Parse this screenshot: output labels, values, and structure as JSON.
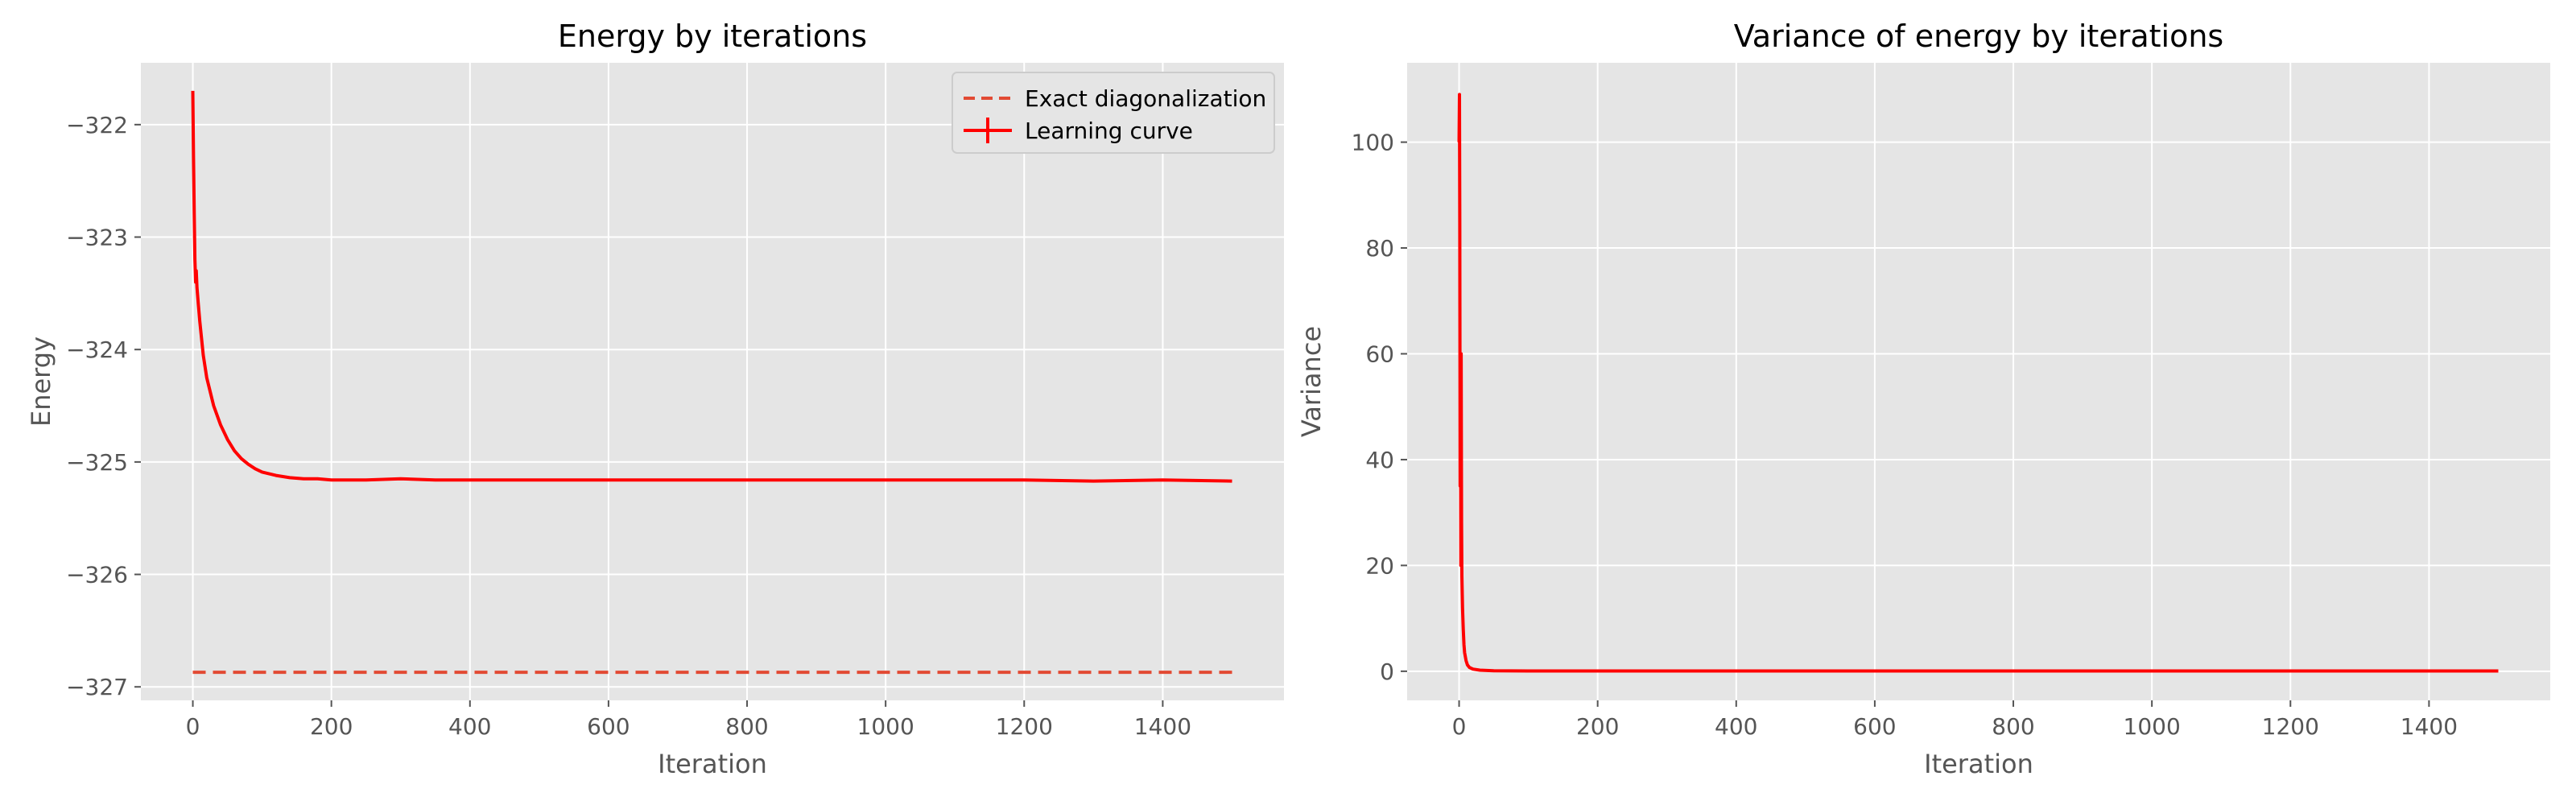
{
  "colors": {
    "figure_bg": "#ffffff",
    "axes_bg": "#e5e5e5",
    "grid": "#ffffff",
    "tick": "#555555",
    "exact_line": "#e24a33",
    "curve": "#ff0000",
    "legend_bg": "#e5e5e5",
    "legend_border": "#cccccc"
  },
  "chart_data": [
    {
      "type": "line",
      "title": "Energy by iterations",
      "xlabel": "Iteration",
      "ylabel": "Energy",
      "xlim": [
        -75,
        1575
      ],
      "ylim": [
        -327.12,
        -321.45
      ],
      "xticks": [
        0,
        200,
        400,
        600,
        800,
        1000,
        1200,
        1400
      ],
      "yticks": [
        -327,
        -326,
        -325,
        -324,
        -323,
        -322
      ],
      "grid": true,
      "legend_position": "top-right",
      "series": [
        {
          "name": "Exact diagonalization",
          "style": "dashed",
          "x": [
            0,
            1500
          ],
          "y": [
            -326.87,
            -326.87
          ]
        },
        {
          "name": "Learning curve",
          "style": "solid",
          "x": [
            0,
            1,
            2,
            3,
            4,
            5,
            6,
            8,
            10,
            15,
            20,
            30,
            40,
            50,
            60,
            70,
            80,
            90,
            100,
            120,
            140,
            160,
            180,
            200,
            250,
            300,
            350,
            400,
            500,
            600,
            700,
            800,
            900,
            1000,
            1100,
            1200,
            1300,
            1400,
            1500
          ],
          "y": [
            -321.7,
            -322.3,
            -322.8,
            -323.2,
            -323.4,
            -323.3,
            -323.45,
            -323.6,
            -323.75,
            -324.05,
            -324.25,
            -324.5,
            -324.67,
            -324.8,
            -324.9,
            -324.97,
            -325.02,
            -325.06,
            -325.09,
            -325.12,
            -325.14,
            -325.15,
            -325.15,
            -325.16,
            -325.16,
            -325.15,
            -325.16,
            -325.16,
            -325.16,
            -325.16,
            -325.16,
            -325.16,
            -325.16,
            -325.16,
            -325.16,
            -325.16,
            -325.17,
            -325.16,
            -325.17
          ]
        }
      ]
    },
    {
      "type": "line",
      "title": "Variance of energy by iterations",
      "xlabel": "Iteration",
      "ylabel": "Variance",
      "xlim": [
        -75,
        1575
      ],
      "ylim": [
        -5.5,
        115
      ],
      "xticks": [
        0,
        200,
        400,
        600,
        800,
        1000,
        1200,
        1400
      ],
      "yticks": [
        0,
        20,
        40,
        60,
        80,
        100
      ],
      "grid": true,
      "series": [
        {
          "style": "solid",
          "x": [
            0,
            0.5,
            1,
            1.5,
            2,
            2.5,
            3,
            3.5,
            4,
            5,
            6,
            7,
            8,
            10,
            12,
            15,
            20,
            30,
            50,
            100,
            200,
            400,
            600,
            800,
            1000,
            1200,
            1400,
            1500
          ],
          "y": [
            100,
            109,
            85,
            35,
            55,
            20,
            60,
            28,
            18,
            12,
            8,
            5,
            3.5,
            2,
            1.2,
            0.7,
            0.4,
            0.2,
            0.1,
            0.05,
            0.05,
            0.05,
            0.05,
            0.05,
            0.05,
            0.05,
            0.05,
            0.05
          ]
        }
      ]
    }
  ]
}
